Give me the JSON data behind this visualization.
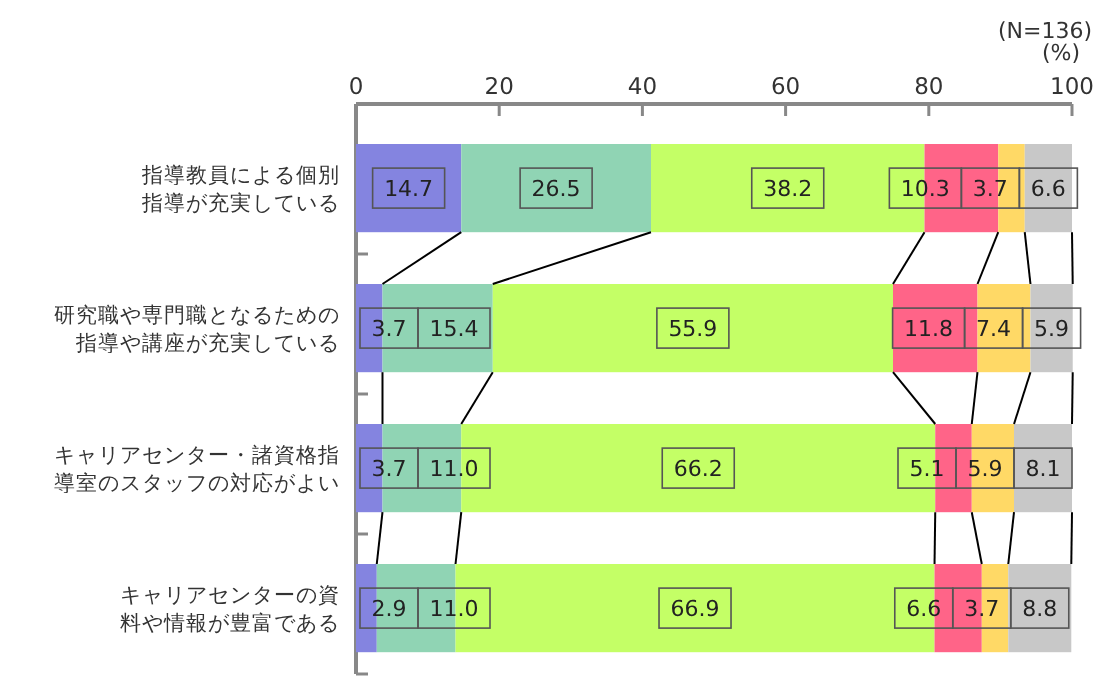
{
  "chart_data": {
    "type": "bar",
    "orientation": "horizontal",
    "stacked": true,
    "data_labels": true,
    "categories": [
      "指導教員による個別指導が充実している",
      "研究職や専門職となるための指導や講座が充実している",
      "キャリアセンター・諸資格指導室のスタッフの対応がよい",
      "キャリアセンターの資料や情報が豊富である"
    ],
    "series": [
      {
        "color": "#8484e0",
        "values": [
          14.7,
          3.7,
          3.7,
          2.9
        ]
      },
      {
        "color": "#90d4b4",
        "values": [
          26.5,
          15.4,
          11.0,
          11.0
        ],
        "value_labels": [
          "26.5",
          "15.4",
          "11.0",
          "11.0"
        ]
      },
      {
        "color": "#c4ff66",
        "values": [
          38.2,
          55.9,
          66.2,
          66.9
        ]
      },
      {
        "color": "#ff6488",
        "values": [
          10.3,
          11.8,
          5.1,
          6.6
        ]
      },
      {
        "color": "#ffd966",
        "values": [
          3.7,
          7.4,
          5.9,
          3.7
        ]
      },
      {
        "color": "#c8c8c8",
        "values": [
          6.6,
          5.9,
          8.1,
          8.8
        ]
      }
    ],
    "xlim": [
      0,
      100
    ],
    "xticks": [
      0,
      20,
      40,
      60,
      80,
      100
    ],
    "xlabel": "(%)",
    "annotations": [
      "(N=136)"
    ]
  }
}
